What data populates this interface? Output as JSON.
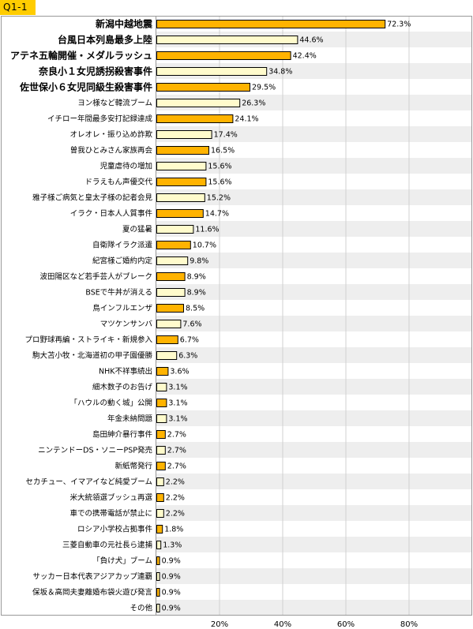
{
  "header": {
    "question_id": "Q1-1"
  },
  "chart_data": {
    "type": "bar",
    "orientation": "horizontal",
    "xlim": [
      0,
      100
    ],
    "xticks": [
      20,
      40,
      60,
      80
    ],
    "xtick_labels": [
      "20%",
      "40%",
      "60%",
      "80%"
    ],
    "value_suffix": "%",
    "grid": true,
    "colors": {
      "highlight": "#FFB300",
      "normal": "#FFFBCC",
      "bar_border": "#000000"
    },
    "categories": [
      "新潟中越地震",
      "台風日本列島最多上陸",
      "アテネ五輪開催・メダルラッシュ",
      "奈良小１女児誘拐殺害事件",
      "佐世保小６女児同級生殺害事件",
      "ヨン様など韓流ブーム",
      "イチロー年間最多安打記録達成",
      "オレオレ・振り込め詐欺",
      "曽我ひとみさん家族再会",
      "児童虐待の増加",
      "ドラえもん声優交代",
      "雅子様ご病気と皇太子様の記者会見",
      "イラク・日本人人質事件",
      "夏の猛暑",
      "自衛隊イラク派遣",
      "紀宮様ご婚約内定",
      "波田陽区など若手芸人がブレーク",
      "BSEで牛丼が消える",
      "鳥インフルエンザ",
      "マツケンサンバ",
      "プロ野球再編・ストライキ・新規参入",
      "駒大苫小牧・北海道初の甲子園優勝",
      "NHK不祥事続出",
      "細木数子のお告げ",
      "「ハウルの動く城」公開",
      "年金未納問題",
      "島田紳介暴行事件",
      "ニンテンドーDS・ソニーPSP発売",
      "新紙幣発行",
      "セカチュー、イマアイなど純愛ブーム",
      "米大統領選ブッシュ再選",
      "車での携帯電話が禁止に",
      "ロシア小学校占拠事件",
      "三菱自動車の元社長ら逮捕",
      "「負け犬」ブーム",
      "サッカー日本代表アジアカップ連覇",
      "保坂＆高岡夫妻離婚布袋火遊び発言",
      "その他"
    ],
    "values": [
      72.3,
      44.6,
      42.4,
      34.8,
      29.5,
      26.3,
      24.1,
      17.4,
      16.5,
      15.6,
      15.6,
      15.2,
      14.7,
      11.6,
      10.7,
      9.8,
      8.9,
      8.9,
      8.5,
      7.6,
      6.7,
      6.3,
      3.6,
      3.1,
      3.1,
      3.1,
      2.7,
      2.7,
      2.7,
      2.2,
      2.2,
      2.2,
      1.8,
      1.3,
      0.9,
      0.9,
      0.9,
      0.9
    ],
    "value_labels": [
      "72.3%",
      "44.6%",
      "42.4%",
      "34.8%",
      "29.5%",
      "26.3%",
      "24.1%",
      "17.4%",
      "16.5%",
      "15.6%",
      "15.6%",
      "15.2%",
      "14.7%",
      "11.6%",
      "10.7%",
      "9.8%",
      "8.9%",
      "8.9%",
      "8.5%",
      "7.6%",
      "6.7%",
      "6.3%",
      "3.6%",
      "3.1%",
      "3.1%",
      "3.1%",
      "2.7%",
      "2.7%",
      "2.7%",
      "2.2%",
      "2.2%",
      "2.2%",
      "1.8%",
      "1.3%",
      "0.9%",
      "0.9%",
      "0.9%",
      "0.9%"
    ],
    "highlighted": [
      true,
      false,
      true,
      false,
      true,
      false,
      true,
      false,
      true,
      false,
      true,
      false,
      true,
      false,
      true,
      false,
      true,
      false,
      true,
      false,
      true,
      false,
      true,
      false,
      true,
      false,
      true,
      false,
      true,
      false,
      true,
      false,
      true,
      false,
      true,
      false,
      true,
      false
    ],
    "emphasized": [
      true,
      true,
      true,
      true,
      true,
      false,
      false,
      false,
      false,
      false,
      false,
      false,
      false,
      false,
      false,
      false,
      false,
      false,
      false,
      false,
      false,
      false,
      false,
      false,
      false,
      false,
      false,
      false,
      false,
      false,
      false,
      false,
      false,
      false,
      false,
      false,
      false,
      false
    ]
  }
}
